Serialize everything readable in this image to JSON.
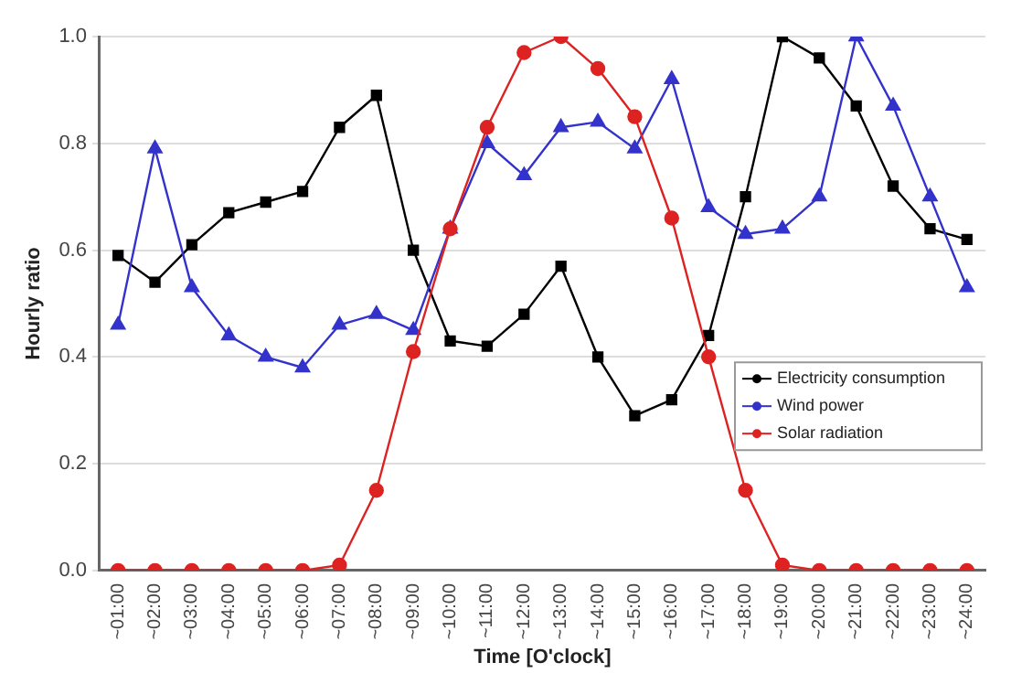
{
  "chart_data": {
    "type": "line",
    "xlabel": "Time [O'clock]",
    "ylabel": "Hourly ratio",
    "categories": [
      "~01:00",
      "~02:00",
      "~03:00",
      "~04:00",
      "~05:00",
      "~06:00",
      "~07:00",
      "~08:00",
      "~09:00",
      "~10:00",
      "~11:00",
      "~12:00",
      "~13:00",
      "~14:00",
      "~15:00",
      "~16:00",
      "~17:00",
      "~18:00",
      "~19:00",
      "~20:00",
      "~21:00",
      "~22:00",
      "~23:00",
      "~24:00"
    ],
    "series": [
      {
        "name": "Electricity consumption",
        "color": "#000000",
        "marker": "square",
        "values": [
          0.59,
          0.54,
          0.61,
          0.67,
          0.69,
          0.71,
          0.83,
          0.89,
          0.6,
          0.43,
          0.42,
          0.48,
          0.57,
          0.4,
          0.29,
          0.32,
          0.44,
          0.7,
          1.0,
          0.96,
          0.87,
          0.72,
          0.64,
          0.62
        ]
      },
      {
        "name": "Wind power",
        "color": "#3333cc",
        "marker": "triangle",
        "values": [
          0.46,
          0.79,
          0.53,
          0.44,
          0.4,
          0.38,
          0.46,
          0.48,
          0.45,
          0.64,
          0.8,
          0.74,
          0.83,
          0.84,
          0.79,
          0.92,
          0.68,
          0.63,
          0.64,
          0.7,
          1.0,
          0.87,
          0.7,
          0.53
        ]
      },
      {
        "name": "Solar radiation",
        "color": "#dd2222",
        "marker": "circle",
        "values": [
          0,
          0,
          0,
          0,
          0,
          0,
          0.01,
          0.15,
          0.41,
          0.64,
          0.83,
          0.97,
          1.0,
          0.94,
          0.85,
          0.66,
          0.4,
          0.15,
          0.01,
          0,
          0,
          0,
          0,
          0
        ]
      }
    ],
    "ylim": [
      0,
      1
    ],
    "yticks": [
      {
        "value": 0,
        "label": "0.0"
      },
      {
        "value": 0.2,
        "label": "0.2"
      },
      {
        "value": 0.4,
        "label": "0.4"
      },
      {
        "value": 0.6,
        "label": "0.6"
      },
      {
        "value": 0.8,
        "label": "0.8"
      },
      {
        "value": 1,
        "label": "1.0"
      }
    ],
    "grid": "y",
    "legend": "right"
  }
}
